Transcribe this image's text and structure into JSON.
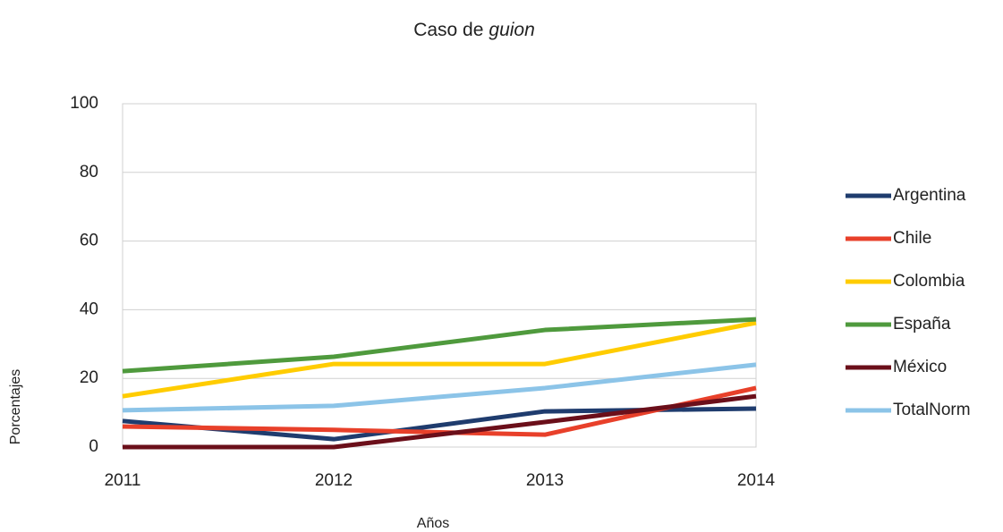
{
  "chart_data": {
    "type": "line",
    "title": [
      "Caso de",
      "guion"
    ],
    "x_label": "Años",
    "y_label": "Porcentajes",
    "x": [
      2011,
      2012,
      2013,
      2014
    ],
    "xlim": [
      2011,
      2014
    ],
    "xticks": [
      2011,
      2012,
      2013,
      2014
    ],
    "ylim": [
      0,
      100
    ],
    "yticks": [
      0,
      20,
      40,
      60,
      80,
      100
    ],
    "grid": true,
    "legend": "right",
    "series": [
      {
        "name": "Argentina",
        "color": "#1f3c6e",
        "values": [
          7.6,
          2.3,
          10.4,
          11.2
        ]
      },
      {
        "name": "Chile",
        "color": "#e8402a",
        "values": [
          6,
          5,
          3.6,
          17.2
        ]
      },
      {
        "name": "Colombia",
        "color": "#ffcc00",
        "values": [
          14.8,
          24.2,
          24.2,
          36.2
        ]
      },
      {
        "name": "España",
        "color": "#4f9a3d",
        "values": [
          22.1,
          26.3,
          34.1,
          37.2
        ]
      },
      {
        "name": "México",
        "color": "#6b0f1a",
        "values": [
          0,
          0,
          7.3,
          14.8
        ]
      },
      {
        "name": "TotalNorm",
        "color": "#8cc4e8",
        "values": [
          10.7,
          12,
          17.2,
          24
        ]
      }
    ]
  }
}
